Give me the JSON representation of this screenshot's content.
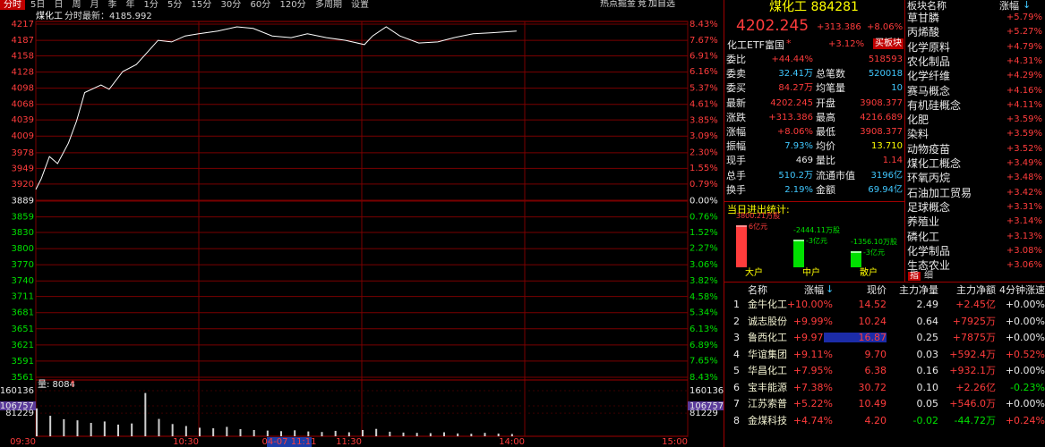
{
  "toolbar": {
    "tabs": [
      "分时",
      "5日",
      "日",
      "周",
      "月",
      "季",
      "年",
      "1分",
      "5分",
      "15分",
      "30分",
      "60分",
      "120分",
      "多周期",
      "设置"
    ],
    "tools": [
      "热点掘金",
      "竞",
      "加自选"
    ]
  },
  "chart_header": {
    "name": "煤化工",
    "mode": "分时",
    "latest": "最新：4185.992"
  },
  "intraday": {
    "type": "line",
    "color": "#ffffff",
    "grid": true,
    "x": [
      0,
      2,
      5,
      8,
      12,
      15,
      18,
      24,
      27,
      32,
      37,
      42,
      45,
      50,
      55,
      60,
      67,
      74,
      80,
      87,
      94,
      100,
      107,
      114,
      121,
      124,
      129,
      134,
      141,
      148,
      154,
      161,
      168,
      177
    ],
    "values": [
      3910,
      3930,
      3971,
      3958,
      3996,
      4037,
      4090,
      4104,
      4096,
      4129,
      4142,
      4170,
      4187,
      4184,
      4195,
      4199,
      4204,
      4212,
      4209,
      4195,
      4192,
      4199,
      4192,
      4187,
      4179,
      4195,
      4212,
      4195,
      4182,
      4184,
      4192,
      4199,
      4201,
      4204
    ],
    "xlim": [
      0,
      240
    ],
    "xticks": [
      {
        "value": 0,
        "label": "09:30"
      },
      {
        "value": 60,
        "label": "10:30"
      },
      {
        "value": 120,
        "label": "11:30"
      },
      {
        "value": 180,
        "label": "14:00"
      },
      {
        "value": 240,
        "label": "15:00"
      }
    ],
    "cursor_label": "04-07 11:11",
    "ylim": [
      3561,
      4217
    ],
    "yticks": [
      4217,
      4187,
      4158,
      4128,
      4098,
      4068,
      4039,
      4009,
      3978,
      3949,
      3920,
      3889,
      3859,
      3830,
      3800,
      3770,
      3740,
      3711,
      3681,
      3651,
      3621,
      3591,
      3561
    ],
    "y2lim": [
      -8.43,
      8.43
    ],
    "y2ticks": [
      {
        "value": 8.43,
        "label": "8.43%"
      },
      {
        "value": 7.67,
        "label": "7.67%"
      },
      {
        "value": 6.91,
        "label": "6.91%"
      },
      {
        "value": 6.16,
        "label": "6.16%"
      },
      {
        "value": 5.37,
        "label": "5.37%"
      },
      {
        "value": 4.61,
        "label": "4.61%"
      },
      {
        "value": 3.85,
        "label": "3.85%"
      },
      {
        "value": 3.09,
        "label": "3.09%"
      },
      {
        "value": 2.3,
        "label": "2.30%"
      },
      {
        "value": 1.55,
        "label": "1.55%"
      },
      {
        "value": 0.79,
        "label": "0.79%"
      },
      {
        "value": 0,
        "label": "0.00%"
      },
      {
        "value": -0.76,
        "label": "0.76%"
      },
      {
        "value": -1.52,
        "label": "1.52%"
      },
      {
        "value": -2.27,
        "label": "2.27%"
      },
      {
        "value": -3.06,
        "label": "3.06%"
      },
      {
        "value": -3.82,
        "label": "3.82%"
      },
      {
        "value": -4.58,
        "label": "4.58%"
      },
      {
        "value": -5.34,
        "label": "5.34%"
      },
      {
        "value": -6.13,
        "label": "6.13%"
      },
      {
        "value": -6.89,
        "label": "6.89%"
      },
      {
        "value": -7.65,
        "label": "7.65%"
      },
      {
        "value": -8.43,
        "label": "8.43%"
      }
    ]
  },
  "volume": {
    "type": "bar",
    "label": "量: 8084",
    "color": "#d0d0d0",
    "x": [
      0,
      5,
      10,
      15,
      20,
      25,
      30,
      35,
      40,
      45,
      50,
      55,
      60,
      65,
      70,
      75,
      80,
      85,
      90,
      95,
      100,
      105,
      110,
      115,
      120,
      125,
      130,
      135,
      140,
      145,
      150,
      155,
      160,
      165,
      170,
      175
    ],
    "values": [
      98000,
      72000,
      60000,
      56000,
      47000,
      52000,
      41000,
      45000,
      152000,
      61000,
      43000,
      36000,
      30000,
      28000,
      33000,
      25000,
      22000,
      20000,
      18000,
      21000,
      17000,
      15000,
      19000,
      14000,
      22000,
      26000,
      16000,
      13000,
      12000,
      11000,
      14000,
      10000,
      9000,
      12000,
      9500,
      8084
    ],
    "ylim": [
      0,
      160136
    ],
    "yticks": [
      160136,
      106757,
      81229
    ]
  },
  "quote": {
    "title": "煤化工 884281",
    "price": "4202.245",
    "change": "+313.386",
    "pct": "+8.06%",
    "etf": {
      "name": "化工ETF富国",
      "mark": "*",
      "pct": "+3.12%",
      "button": "买板块"
    },
    "rows": [
      [
        "委比",
        "+44.44%",
        "518593"
      ],
      [
        "委卖",
        "32.41万",
        "总笔数",
        "520018"
      ],
      [
        "委买",
        "84.27万",
        "均笔量",
        "10"
      ],
      [
        "最新",
        "4202.245",
        "开盘",
        "3908.377"
      ],
      [
        "涨跌",
        "+313.386",
        "最高",
        "4216.689"
      ],
      [
        "涨幅",
        "+8.06%",
        "最低",
        "3908.377"
      ],
      [
        "振幅",
        "7.93%",
        "均价",
        "13.710"
      ],
      [
        "现手",
        "469",
        "量比",
        "1.14"
      ],
      [
        "总手",
        "510.2万",
        "流通市值",
        "3196亿"
      ],
      [
        "换手",
        "2.19%",
        "金额",
        "69.94亿"
      ]
    ]
  },
  "flow": {
    "title": "当日进出统计:",
    "categories": [
      "大户",
      "中户",
      "散户"
    ],
    "values": [
      3800.21,
      -2444.11,
      -1356.1
    ],
    "value_labels": [
      "3800.21万股",
      "-2444.11万股",
      "-1356.10万股"
    ],
    "amounts": [
      "6亿元",
      "-3亿元",
      "-3亿元"
    ]
  },
  "tabs2": [
    "指",
    "细"
  ],
  "stocks": {
    "headers": [
      "名称",
      "涨幅",
      "现价",
      "主力净量",
      "主力净额",
      "4分钟涨速"
    ],
    "rows": [
      [
        "1",
        "金牛化工",
        "+10.00%",
        "14.52",
        "2.49",
        "+2.45亿",
        "+0.00%"
      ],
      [
        "2",
        "诚志股份",
        "+9.99%",
        "10.24",
        "0.64",
        "+7925万",
        "+0.00%"
      ],
      [
        "3",
        "鲁西化工",
        "+9.97%",
        "16.87",
        "0.25",
        "+7875万",
        "+0.00%"
      ],
      [
        "4",
        "华谊集团",
        "+9.11%",
        "9.70",
        "0.03",
        "+592.4万",
        "+0.52%"
      ],
      [
        "5",
        "华昌化工",
        "+7.95%",
        "6.38",
        "0.16",
        "+932.1万",
        "+0.00%"
      ],
      [
        "6",
        "宝丰能源",
        "+7.38%",
        "30.72",
        "0.10",
        "+2.26亿",
        "-0.23%"
      ],
      [
        "7",
        "江苏索普",
        "+5.22%",
        "10.49",
        "0.05",
        "+546.0万",
        "+0.00%"
      ],
      [
        "8",
        "金煤科技",
        "+4.74%",
        "4.20",
        "-0.02",
        "-44.72万",
        "+0.24%"
      ]
    ]
  },
  "sectors": {
    "headers": [
      "板块名称",
      "涨幅"
    ],
    "rows": [
      [
        "草甘膦",
        "+5.79%"
      ],
      [
        "丙烯酸",
        "+5.27%"
      ],
      [
        "化学原料",
        "+4.79%"
      ],
      [
        "农化制品",
        "+4.31%"
      ],
      [
        "化学纤维",
        "+4.29%"
      ],
      [
        "赛马概念",
        "+4.16%"
      ],
      [
        "有机硅概念",
        "+4.11%"
      ],
      [
        "化肥",
        "+3.59%"
      ],
      [
        "染料",
        "+3.59%"
      ],
      [
        "动物疫苗",
        "+3.52%"
      ],
      [
        "煤化工概念",
        "+3.49%"
      ],
      [
        "环氧丙烷",
        "+3.48%"
      ],
      [
        "石油加工贸易",
        "+3.42%"
      ],
      [
        "足球概念",
        "+3.31%"
      ],
      [
        "养殖业",
        "+3.14%"
      ],
      [
        "磷化工",
        "+3.13%"
      ],
      [
        "化学制品",
        "+3.08%"
      ],
      [
        "生态农业",
        "+3.06%"
      ]
    ]
  }
}
